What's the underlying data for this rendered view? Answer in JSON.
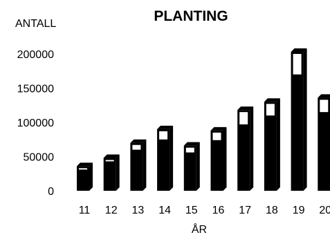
{
  "chart_data": {
    "type": "bar",
    "title": "PLANTING",
    "ylabel": "ANTALL",
    "xlabel": "ÅR",
    "categories": [
      "11",
      "12",
      "13",
      "14",
      "15",
      "16",
      "17",
      "18",
      "19",
      "20"
    ],
    "ylim": [
      0,
      200000
    ],
    "yticks": [
      "0",
      "50000",
      "100000",
      "150000",
      "200000"
    ],
    "series": [
      {
        "values": [
          36000,
          48000,
          70000,
          90000,
          66000,
          88000,
          118000,
          130000,
          203000,
          136000
        ]
      },
      {
        "values": [
          31000,
          43000,
          60000,
          75000,
          56000,
          74000,
          97000,
          110000,
          170000,
          115000
        ]
      }
    ],
    "colors": {
      "bar": "#000000",
      "cap": "#ffffff",
      "text": "#000000"
    },
    "style": "3d-bars",
    "grid": false,
    "legend": "none"
  }
}
